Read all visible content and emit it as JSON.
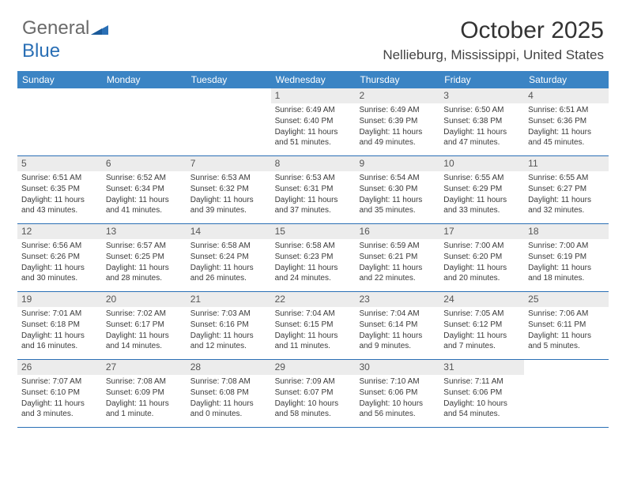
{
  "brand": {
    "part1": "General",
    "part2": "Blue"
  },
  "title": "October 2025",
  "location": "Nellieburg, Mississippi, United States",
  "colors": {
    "header_bg": "#3b84c4",
    "header_text": "#ffffff",
    "divider": "#2a6fb5",
    "daynum_bg": "#ececec",
    "text": "#3a3a3a"
  },
  "daynames": [
    "Sunday",
    "Monday",
    "Tuesday",
    "Wednesday",
    "Thursday",
    "Friday",
    "Saturday"
  ],
  "weeks": [
    [
      {
        "n": "",
        "sr": "",
        "ss": "",
        "dl": ""
      },
      {
        "n": "",
        "sr": "",
        "ss": "",
        "dl": ""
      },
      {
        "n": "",
        "sr": "",
        "ss": "",
        "dl": ""
      },
      {
        "n": "1",
        "sr": "Sunrise: 6:49 AM",
        "ss": "Sunset: 6:40 PM",
        "dl": "Daylight: 11 hours and 51 minutes."
      },
      {
        "n": "2",
        "sr": "Sunrise: 6:49 AM",
        "ss": "Sunset: 6:39 PM",
        "dl": "Daylight: 11 hours and 49 minutes."
      },
      {
        "n": "3",
        "sr": "Sunrise: 6:50 AM",
        "ss": "Sunset: 6:38 PM",
        "dl": "Daylight: 11 hours and 47 minutes."
      },
      {
        "n": "4",
        "sr": "Sunrise: 6:51 AM",
        "ss": "Sunset: 6:36 PM",
        "dl": "Daylight: 11 hours and 45 minutes."
      }
    ],
    [
      {
        "n": "5",
        "sr": "Sunrise: 6:51 AM",
        "ss": "Sunset: 6:35 PM",
        "dl": "Daylight: 11 hours and 43 minutes."
      },
      {
        "n": "6",
        "sr": "Sunrise: 6:52 AM",
        "ss": "Sunset: 6:34 PM",
        "dl": "Daylight: 11 hours and 41 minutes."
      },
      {
        "n": "7",
        "sr": "Sunrise: 6:53 AM",
        "ss": "Sunset: 6:32 PM",
        "dl": "Daylight: 11 hours and 39 minutes."
      },
      {
        "n": "8",
        "sr": "Sunrise: 6:53 AM",
        "ss": "Sunset: 6:31 PM",
        "dl": "Daylight: 11 hours and 37 minutes."
      },
      {
        "n": "9",
        "sr": "Sunrise: 6:54 AM",
        "ss": "Sunset: 6:30 PM",
        "dl": "Daylight: 11 hours and 35 minutes."
      },
      {
        "n": "10",
        "sr": "Sunrise: 6:55 AM",
        "ss": "Sunset: 6:29 PM",
        "dl": "Daylight: 11 hours and 33 minutes."
      },
      {
        "n": "11",
        "sr": "Sunrise: 6:55 AM",
        "ss": "Sunset: 6:27 PM",
        "dl": "Daylight: 11 hours and 32 minutes."
      }
    ],
    [
      {
        "n": "12",
        "sr": "Sunrise: 6:56 AM",
        "ss": "Sunset: 6:26 PM",
        "dl": "Daylight: 11 hours and 30 minutes."
      },
      {
        "n": "13",
        "sr": "Sunrise: 6:57 AM",
        "ss": "Sunset: 6:25 PM",
        "dl": "Daylight: 11 hours and 28 minutes."
      },
      {
        "n": "14",
        "sr": "Sunrise: 6:58 AM",
        "ss": "Sunset: 6:24 PM",
        "dl": "Daylight: 11 hours and 26 minutes."
      },
      {
        "n": "15",
        "sr": "Sunrise: 6:58 AM",
        "ss": "Sunset: 6:23 PM",
        "dl": "Daylight: 11 hours and 24 minutes."
      },
      {
        "n": "16",
        "sr": "Sunrise: 6:59 AM",
        "ss": "Sunset: 6:21 PM",
        "dl": "Daylight: 11 hours and 22 minutes."
      },
      {
        "n": "17",
        "sr": "Sunrise: 7:00 AM",
        "ss": "Sunset: 6:20 PM",
        "dl": "Daylight: 11 hours and 20 minutes."
      },
      {
        "n": "18",
        "sr": "Sunrise: 7:00 AM",
        "ss": "Sunset: 6:19 PM",
        "dl": "Daylight: 11 hours and 18 minutes."
      }
    ],
    [
      {
        "n": "19",
        "sr": "Sunrise: 7:01 AM",
        "ss": "Sunset: 6:18 PM",
        "dl": "Daylight: 11 hours and 16 minutes."
      },
      {
        "n": "20",
        "sr": "Sunrise: 7:02 AM",
        "ss": "Sunset: 6:17 PM",
        "dl": "Daylight: 11 hours and 14 minutes."
      },
      {
        "n": "21",
        "sr": "Sunrise: 7:03 AM",
        "ss": "Sunset: 6:16 PM",
        "dl": "Daylight: 11 hours and 12 minutes."
      },
      {
        "n": "22",
        "sr": "Sunrise: 7:04 AM",
        "ss": "Sunset: 6:15 PM",
        "dl": "Daylight: 11 hours and 11 minutes."
      },
      {
        "n": "23",
        "sr": "Sunrise: 7:04 AM",
        "ss": "Sunset: 6:14 PM",
        "dl": "Daylight: 11 hours and 9 minutes."
      },
      {
        "n": "24",
        "sr": "Sunrise: 7:05 AM",
        "ss": "Sunset: 6:12 PM",
        "dl": "Daylight: 11 hours and 7 minutes."
      },
      {
        "n": "25",
        "sr": "Sunrise: 7:06 AM",
        "ss": "Sunset: 6:11 PM",
        "dl": "Daylight: 11 hours and 5 minutes."
      }
    ],
    [
      {
        "n": "26",
        "sr": "Sunrise: 7:07 AM",
        "ss": "Sunset: 6:10 PM",
        "dl": "Daylight: 11 hours and 3 minutes."
      },
      {
        "n": "27",
        "sr": "Sunrise: 7:08 AM",
        "ss": "Sunset: 6:09 PM",
        "dl": "Daylight: 11 hours and 1 minute."
      },
      {
        "n": "28",
        "sr": "Sunrise: 7:08 AM",
        "ss": "Sunset: 6:08 PM",
        "dl": "Daylight: 11 hours and 0 minutes."
      },
      {
        "n": "29",
        "sr": "Sunrise: 7:09 AM",
        "ss": "Sunset: 6:07 PM",
        "dl": "Daylight: 10 hours and 58 minutes."
      },
      {
        "n": "30",
        "sr": "Sunrise: 7:10 AM",
        "ss": "Sunset: 6:06 PM",
        "dl": "Daylight: 10 hours and 56 minutes."
      },
      {
        "n": "31",
        "sr": "Sunrise: 7:11 AM",
        "ss": "Sunset: 6:06 PM",
        "dl": "Daylight: 10 hours and 54 minutes."
      },
      {
        "n": "",
        "sr": "",
        "ss": "",
        "dl": ""
      }
    ]
  ]
}
